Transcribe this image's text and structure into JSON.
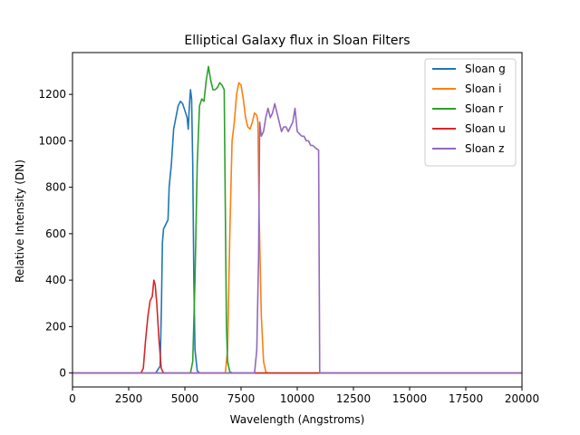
{
  "chart_data": {
    "type": "line",
    "title": "Elliptical Galaxy flux in Sloan Filters",
    "xlabel": "Wavelength (Angstroms)",
    "ylabel": "Relative Intensity (DN)",
    "xlim": [
      0,
      20000
    ],
    "ylim": [
      -60,
      1380
    ],
    "xticks": [
      0,
      2500,
      5000,
      7500,
      10000,
      12500,
      15000,
      17500,
      20000
    ],
    "yticks": [
      0,
      200,
      400,
      600,
      800,
      1000,
      1200
    ],
    "grid": false,
    "legend_position": "top-right",
    "series": [
      {
        "name": "Sloan g",
        "color": "#1f77b4",
        "points": [
          [
            0,
            0
          ],
          [
            3700,
            0
          ],
          [
            3900,
            30
          ],
          [
            3960,
            300
          ],
          [
            4000,
            560
          ],
          [
            4050,
            620
          ],
          [
            4150,
            640
          ],
          [
            4250,
            660
          ],
          [
            4300,
            800
          ],
          [
            4400,
            900
          ],
          [
            4500,
            1050
          ],
          [
            4600,
            1100
          ],
          [
            4700,
            1150
          ],
          [
            4800,
            1170
          ],
          [
            4900,
            1160
          ],
          [
            5000,
            1130
          ],
          [
            5100,
            1100
          ],
          [
            5150,
            1050
          ],
          [
            5200,
            1150
          ],
          [
            5250,
            1220
          ],
          [
            5300,
            1180
          ],
          [
            5350,
            900
          ],
          [
            5400,
            400
          ],
          [
            5450,
            100
          ],
          [
            5550,
            10
          ],
          [
            5650,
            0
          ],
          [
            20000,
            0
          ]
        ]
      },
      {
        "name": "Sloan i",
        "color": "#ff7f0e",
        "points": [
          [
            0,
            0
          ],
          [
            6800,
            0
          ],
          [
            6900,
            100
          ],
          [
            7000,
            600
          ],
          [
            7100,
            1000
          ],
          [
            7200,
            1080
          ],
          [
            7300,
            1200
          ],
          [
            7400,
            1250
          ],
          [
            7500,
            1240
          ],
          [
            7600,
            1180
          ],
          [
            7700,
            1100
          ],
          [
            7800,
            1060
          ],
          [
            7900,
            1050
          ],
          [
            8000,
            1080
          ],
          [
            8100,
            1120
          ],
          [
            8200,
            1110
          ],
          [
            8250,
            1080
          ],
          [
            8300,
            700
          ],
          [
            8400,
            250
          ],
          [
            8500,
            50
          ],
          [
            8600,
            5
          ],
          [
            8700,
            0
          ],
          [
            20000,
            0
          ]
        ]
      },
      {
        "name": "Sloan r",
        "color": "#2ca02c",
        "points": [
          [
            0,
            0
          ],
          [
            5250,
            0
          ],
          [
            5350,
            50
          ],
          [
            5450,
            400
          ],
          [
            5550,
            900
          ],
          [
            5650,
            1150
          ],
          [
            5750,
            1180
          ],
          [
            5850,
            1170
          ],
          [
            5950,
            1260
          ],
          [
            6050,
            1320
          ],
          [
            6150,
            1260
          ],
          [
            6250,
            1220
          ],
          [
            6350,
            1220
          ],
          [
            6450,
            1230
          ],
          [
            6550,
            1250
          ],
          [
            6650,
            1240
          ],
          [
            6750,
            1220
          ],
          [
            6800,
            700
          ],
          [
            6850,
            200
          ],
          [
            6900,
            50
          ],
          [
            7000,
            5
          ],
          [
            7100,
            0
          ],
          [
            20000,
            0
          ]
        ]
      },
      {
        "name": "Sloan u",
        "color": "#d62728",
        "points": [
          [
            0,
            0
          ],
          [
            3050,
            0
          ],
          [
            3150,
            20
          ],
          [
            3250,
            140
          ],
          [
            3350,
            240
          ],
          [
            3450,
            310
          ],
          [
            3550,
            330
          ],
          [
            3620,
            400
          ],
          [
            3680,
            380
          ],
          [
            3750,
            300
          ],
          [
            3850,
            140
          ],
          [
            3950,
            20
          ],
          [
            4050,
            0
          ],
          [
            20000,
            0
          ]
        ]
      },
      {
        "name": "Sloan z",
        "color": "#9467bd",
        "points": [
          [
            0,
            0
          ],
          [
            8100,
            0
          ],
          [
            8200,
            100
          ],
          [
            8280,
            500
          ],
          [
            8330,
            1080
          ],
          [
            8400,
            1020
          ],
          [
            8500,
            1040
          ],
          [
            8600,
            1100
          ],
          [
            8700,
            1140
          ],
          [
            8800,
            1100
          ],
          [
            8900,
            1120
          ],
          [
            9000,
            1160
          ],
          [
            9100,
            1120
          ],
          [
            9200,
            1080
          ],
          [
            9300,
            1040
          ],
          [
            9400,
            1060
          ],
          [
            9500,
            1060
          ],
          [
            9600,
            1040
          ],
          [
            9700,
            1060
          ],
          [
            9800,
            1080
          ],
          [
            9900,
            1140
          ],
          [
            10000,
            1040
          ],
          [
            10100,
            1030
          ],
          [
            10200,
            1020
          ],
          [
            10300,
            1020
          ],
          [
            10400,
            1000
          ],
          [
            10500,
            1000
          ],
          [
            10600,
            980
          ],
          [
            10700,
            980
          ],
          [
            10800,
            970
          ],
          [
            10950,
            960
          ],
          [
            11000,
            0
          ],
          [
            20000,
            0
          ]
        ]
      }
    ]
  }
}
